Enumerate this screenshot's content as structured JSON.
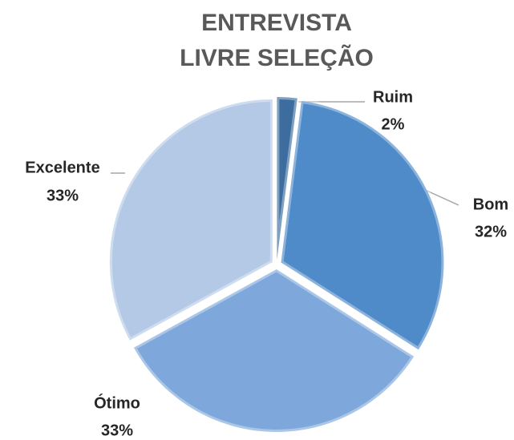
{
  "chart_data": {
    "type": "pie",
    "title": [
      "ENTREVISTA",
      "LIVRE SELEÇÃO"
    ],
    "categories": [
      "Ruim",
      "Bom",
      "Ótimo",
      "Excelente"
    ],
    "values": [
      2,
      32,
      33,
      33
    ],
    "value_labels": [
      "2%",
      "32%",
      "33%",
      "33%"
    ],
    "colors": [
      "#3c6d9e",
      "#4f8bc8",
      "#7ea8db",
      "#b4c9e6"
    ]
  }
}
